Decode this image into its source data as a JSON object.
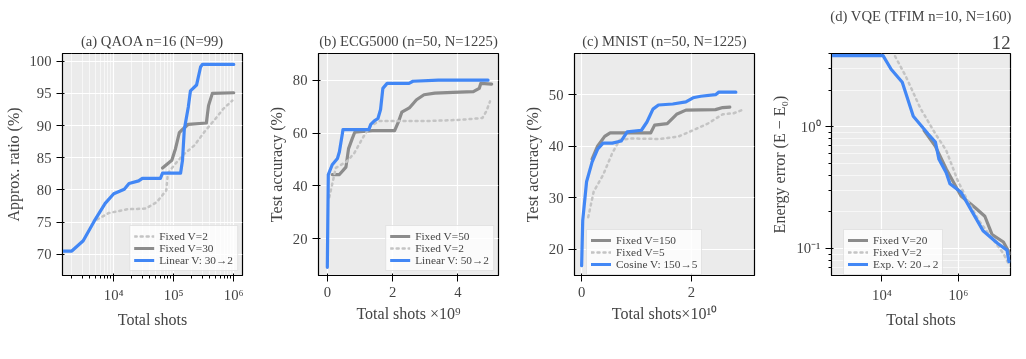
{
  "chart_data": [
    {
      "type": "line",
      "title": "(a) QAOA n=16 (N=99)",
      "xlabel": "Total shots",
      "ylabel": "Approx. ratio (%)",
      "log": "x",
      "grid": true,
      "legend": "bottom right",
      "xlim": [
        1400,
        1400000
      ],
      "ylim": [
        66.7,
        101.2
      ],
      "xticks": [
        {
          "value": 10000,
          "label": "10⁴"
        },
        {
          "value": 100000,
          "label": "10⁵"
        },
        {
          "value": 1000000,
          "label": "10⁶"
        },
        {
          "value": 2000,
          "label": null
        },
        {
          "value": 3000,
          "label": null
        },
        {
          "value": 4000,
          "label": null
        },
        {
          "value": 5000,
          "label": null
        },
        {
          "value": 6000,
          "label": null
        },
        {
          "value": 7000,
          "label": null
        },
        {
          "value": 8000,
          "label": null
        },
        {
          "value": 9000,
          "label": null
        },
        {
          "value": 20000,
          "label": null
        },
        {
          "value": 30000,
          "label": null
        },
        {
          "value": 40000,
          "label": null
        },
        {
          "value": 50000,
          "label": null
        },
        {
          "value": 60000,
          "label": null
        },
        {
          "value": 70000,
          "label": null
        },
        {
          "value": 80000,
          "label": null
        },
        {
          "value": 90000,
          "label": null
        },
        {
          "value": 200000,
          "label": null
        },
        {
          "value": 300000,
          "label": null
        },
        {
          "value": 400000,
          "label": null
        },
        {
          "value": 500000,
          "label": null
        },
        {
          "value": 600000,
          "label": null
        },
        {
          "value": 700000,
          "label": null
        },
        {
          "value": 800000,
          "label": null
        },
        {
          "value": 900000,
          "label": null
        }
      ],
      "yticks": [
        70,
        75,
        80,
        85,
        90,
        95,
        100
      ],
      "series": [
        {
          "name": "Fixed V=2",
          "color": "#c4c4c4",
          "line_style": "dotted",
          "x": [
            5300,
            8200,
            17000,
            34000,
            52000,
            75000,
            80000,
            107000,
            150000,
            220000,
            330000,
            500000,
            670000,
            950000
          ],
          "values": [
            75.4,
            76.4,
            77.0,
            77.1,
            78.1,
            79.9,
            82.6,
            84.1,
            85.6,
            86.9,
            89.1,
            91.1,
            92.6,
            93.9
          ]
        },
        {
          "name": "Fixed V=30",
          "color": "#8c8c8c",
          "line_style": "solid",
          "x": [
            65000,
            80000,
            93000,
            107000,
            124000,
            140000,
            175000,
            350000,
            380000,
            440000,
            1000000
          ],
          "values": [
            83.4,
            84.1,
            84.6,
            86.4,
            88.9,
            89.4,
            90.2,
            90.4,
            93.1,
            95.0,
            95.1
          ]
        },
        {
          "name": "Linear V: 30→2",
          "color": "#4287f5",
          "line_style": "solid",
          "x": [
            1400,
            2000,
            3100,
            4700,
            7200,
            10000,
            15000,
            18000,
            26000,
            30000,
            60000,
            65000,
            130000,
            140000,
            150000,
            175000,
            190000,
            240000,
            280000,
            300000,
            1000000
          ],
          "values": [
            70.5,
            70.5,
            72.1,
            75.1,
            77.9,
            79.4,
            80.1,
            81.0,
            81.4,
            81.8,
            81.8,
            82.6,
            82.6,
            84.6,
            89.4,
            92.9,
            95.4,
            96.3,
            99.1,
            99.5,
            99.5
          ]
        }
      ]
    },
    {
      "type": "line",
      "title": "(b) ECG5000 (n=50, N=1225)",
      "xlabel": "Total shots ×10⁹",
      "ylabel": "Test accuracy (%)",
      "grid": true,
      "legend": "bottom right",
      "xlim": [
        -0.27,
        5.24
      ],
      "ylim": [
        6.1,
        90.1
      ],
      "xticks": [
        0,
        2,
        4
      ],
      "yticks": [
        20,
        40,
        60,
        80
      ],
      "series": [
        {
          "name": "Fixed V=50",
          "color": "#8c8c8c",
          "line_style": "solid",
          "x": [
            0.15,
            0.37,
            0.57,
            0.65,
            0.76,
            0.84,
            1.38,
            2.06,
            2.17,
            2.28,
            2.51,
            2.73,
            2.96,
            3.29,
            3.85,
            4.47,
            4.65,
            4.7,
            5.03
          ],
          "values": [
            44.3,
            44.3,
            47.1,
            54.1,
            57.8,
            60.3,
            60.9,
            60.9,
            64.0,
            67.9,
            69.5,
            72.6,
            74.5,
            75.1,
            75.4,
            75.7,
            76.9,
            78.8,
            78.5
          ]
        },
        {
          "name": "Fixed V=2",
          "color": "#c4c4c4",
          "line_style": "dotted",
          "x": [
            0.06,
            0.26,
            0.6,
            0.82,
            1.1,
            1.33,
            1.61,
            2.28,
            3.18,
            4.08,
            4.75,
            4.87,
            4.98
          ],
          "values": [
            35.7,
            46.8,
            49.3,
            52.3,
            58.5,
            62.8,
            64.6,
            64.6,
            64.6,
            65.0,
            65.7,
            68.3,
            72.0
          ]
        },
        {
          "name": "Linear V: 50→2",
          "color": "#4287f5",
          "line_style": "solid",
          "x": [
            0,
            0.03,
            0.15,
            0.31,
            0.37,
            0.46,
            0.48,
            1.27,
            1.33,
            1.44,
            1.55,
            1.63,
            1.7,
            1.83,
            2.5,
            2.62,
            3.4,
            4.92
          ],
          "values": [
            9.2,
            44.3,
            48.0,
            50.4,
            52.9,
            59.7,
            61.3,
            61.3,
            63.3,
            64.6,
            65.5,
            68.9,
            76.9,
            78.8,
            78.8,
            79.6,
            80.0,
            80.0
          ]
        }
      ]
    },
    {
      "type": "line",
      "title": "(c) MNIST (n=50, N=1225)",
      "xlabel": "Total shots×10¹⁰",
      "ylabel": "Test accuracy (%)",
      "grid": true,
      "legend": "bottom left",
      "xlim": [
        -0.13,
        3.15
      ],
      "ylim": [
        14.9,
        58.0
      ],
      "xticks": [
        0,
        2
      ],
      "yticks": [
        20,
        30,
        40,
        50
      ],
      "series": [
        {
          "name": "Fixed V=150",
          "color": "#8c8c8c",
          "line_style": "solid",
          "x": [
            0.19,
            0.29,
            0.42,
            0.52,
            1.26,
            1.33,
            1.56,
            1.73,
            1.9,
            2.44,
            2.57,
            2.7
          ],
          "values": [
            37.5,
            40.0,
            41.9,
            42.6,
            42.6,
            44.1,
            44.4,
            46.2,
            47.0,
            47.1,
            47.5,
            47.6
          ]
        },
        {
          "name": "Fixed V=5",
          "color": "#c4c4c4",
          "line_style": "dotted",
          "x": [
            0.12,
            0.22,
            0.39,
            0.56,
            0.69,
            0.89,
            1.43,
            1.77,
            2.03,
            2.3,
            2.57,
            2.77,
            2.97
          ],
          "values": [
            26.2,
            31.2,
            34.4,
            38.7,
            41.2,
            41.5,
            41.4,
            41.9,
            43.1,
            44.4,
            46.2,
            46.4,
            47.2
          ]
        },
        {
          "name": "Cosine V: 150→5",
          "color": "#4287f5",
          "line_style": "solid",
          "x": [
            0,
            0.02,
            0.09,
            0.19,
            0.29,
            0.39,
            0.56,
            0.72,
            0.83,
            1.09,
            1.19,
            1.3,
            1.4,
            1.66,
            1.9,
            2.03,
            2.17,
            2.44,
            2.5,
            2.81
          ],
          "values": [
            16.8,
            25.6,
            33.1,
            36.9,
            39.4,
            40.6,
            40.6,
            41.0,
            42.8,
            43.1,
            44.7,
            47.2,
            48.0,
            48.2,
            48.6,
            49.4,
            49.7,
            50.0,
            50.5,
            50.5
          ]
        }
      ]
    },
    {
      "type": "line",
      "title": "(d) VQE (TFIM n=10, N=160)",
      "xlabel": "Total shots",
      "ylabel": "Energy error (E − E₀)",
      "log": "xy",
      "grid": true,
      "legend": "bottom left",
      "annotations": [
        "12"
      ],
      "xlim": [
        480,
        23000000
      ],
      "ylim": [
        0.06,
        4.0
      ],
      "xticks": [
        {
          "value": 10000,
          "label": "10⁴"
        },
        {
          "value": 1000000,
          "label": "10⁶"
        }
      ],
      "yticks": [
        {
          "value": 0.1,
          "label": "10⁻¹"
        },
        {
          "value": 1,
          "label": "10⁰"
        },
        {
          "value": 0.07,
          "label": null
        },
        {
          "value": 0.08,
          "label": null
        },
        {
          "value": 0.09,
          "label": null
        },
        {
          "value": 0.2,
          "label": null
        },
        {
          "value": 0.3,
          "label": null
        },
        {
          "value": 0.4,
          "label": null
        },
        {
          "value": 0.5,
          "label": null
        },
        {
          "value": 0.6,
          "label": null
        },
        {
          "value": 0.7,
          "label": null
        },
        {
          "value": 0.8,
          "label": null
        },
        {
          "value": 0.9,
          "label": null
        },
        {
          "value": 2,
          "label": null
        },
        {
          "value": 3,
          "label": null
        },
        {
          "value": 4,
          "label": null
        }
      ],
      "series": [
        {
          "name": "Fixed V=20",
          "color": "#8c8c8c",
          "line_style": "solid",
          "x": [
            127000,
            250000,
            480000,
            1170000,
            2800000,
            4900000,
            7600000,
            15000000,
            22000000
          ],
          "values": [
            0.93,
            0.69,
            0.45,
            0.27,
            0.215,
            0.184,
            0.13,
            0.113,
            0.091
          ]
        },
        {
          "name": "Fixed V=2",
          "color": "#c4c4c4",
          "line_style": "dotted",
          "x": [
            22000,
            42000,
            100000,
            250000,
            480000,
            930000,
            1600000,
            3500000,
            8500000,
            15000000,
            20000000
          ],
          "values": [
            3.8,
            2.6,
            1.43,
            0.875,
            0.64,
            0.37,
            0.26,
            0.168,
            0.116,
            0.091,
            0.076
          ]
        },
        {
          "name": "Exp. V: 20→2",
          "color": "#4287f5",
          "line_style": "solid",
          "x": [
            480,
            10700,
            17400,
            34000,
            66000,
            160000,
            250000,
            310000,
            480000,
            600000,
            1170000,
            2300000,
            4400000,
            10700000,
            18600000,
            21000000
          ],
          "values": [
            3.84,
            3.84,
            2.97,
            2.32,
            1.22,
            0.875,
            0.75,
            0.54,
            0.42,
            0.34,
            0.29,
            0.2,
            0.14,
            0.11,
            0.097,
            0.078
          ]
        }
      ]
    }
  ]
}
